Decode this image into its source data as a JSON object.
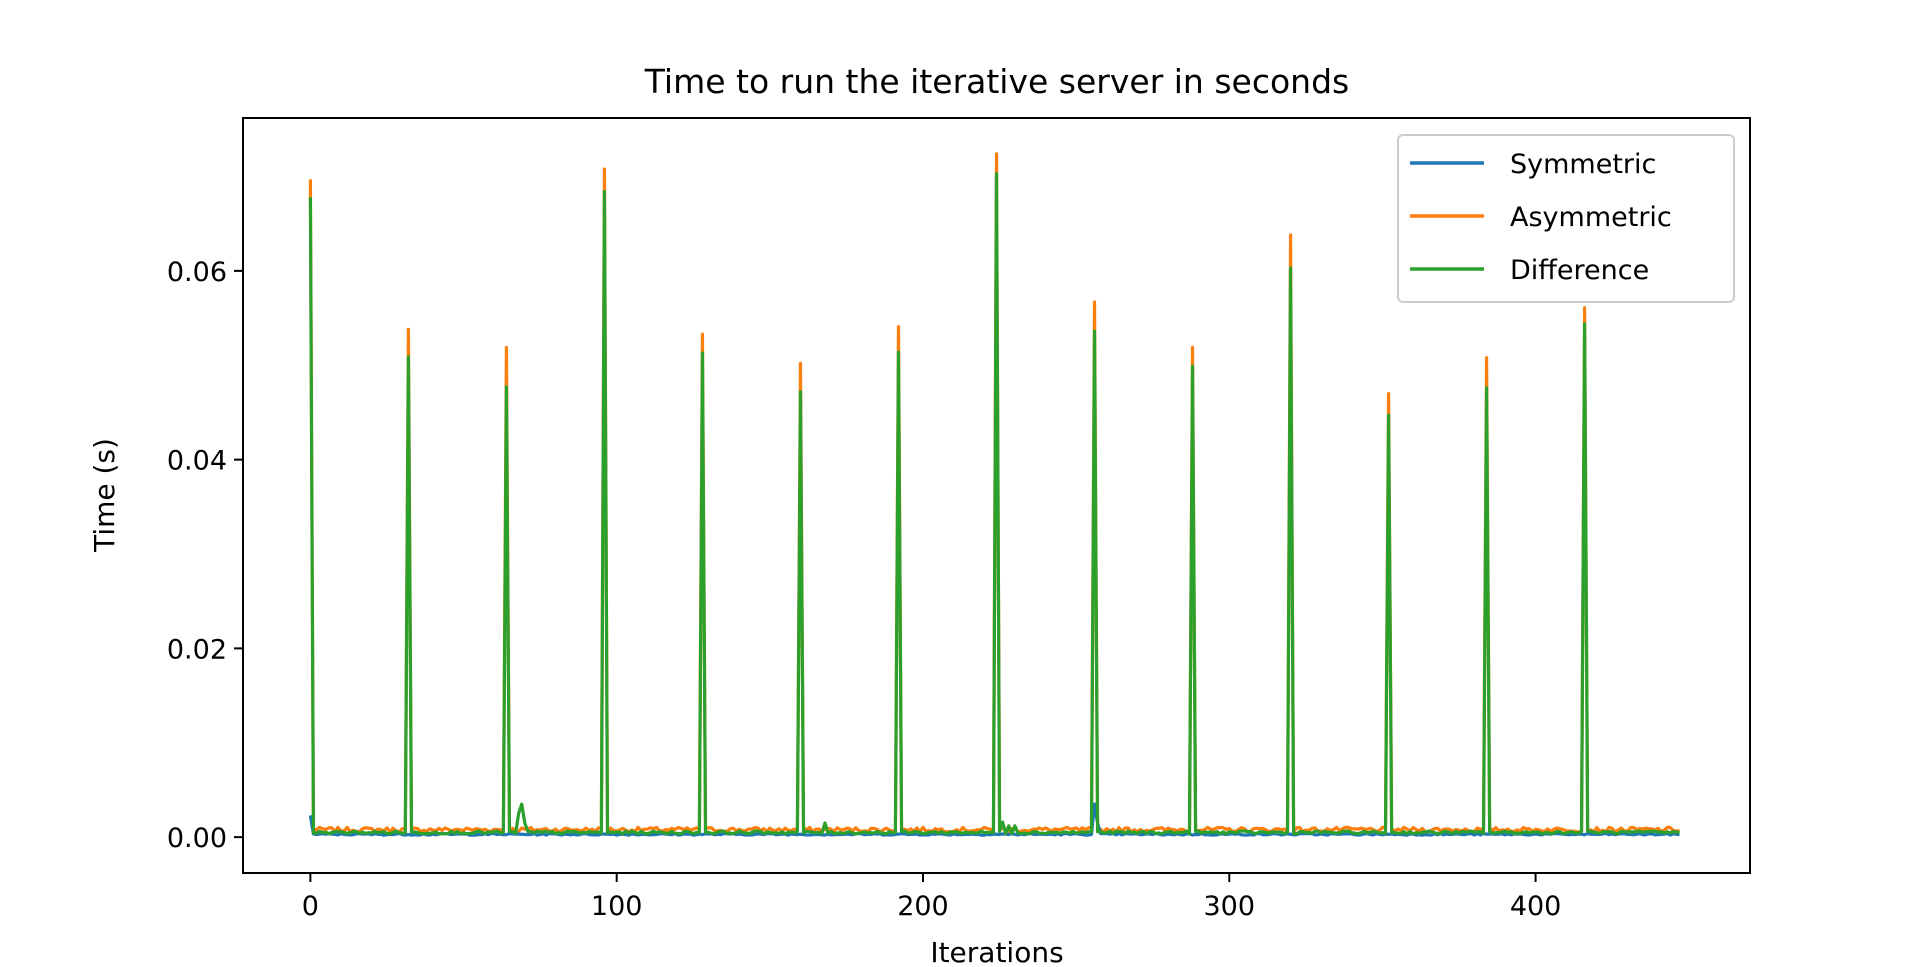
{
  "chart_data": {
    "type": "line",
    "title": "Time to run the iterative server in seconds",
    "xlabel": "Iterations",
    "ylabel": "Time (s)",
    "xlim": [
      -22,
      470
    ],
    "ylim": [
      -0.0038,
      0.0762
    ],
    "x_ticks": [
      0,
      100,
      200,
      300,
      400
    ],
    "x_tick_labels": [
      "0",
      "100",
      "200",
      "300",
      "400"
    ],
    "y_ticks": [
      0.0,
      0.02,
      0.04,
      0.06
    ],
    "y_tick_labels": [
      "0.00",
      "0.02",
      "0.04",
      "0.06"
    ],
    "grid": false,
    "legend_position": "top-right",
    "n_points": 448,
    "spike_period": 32,
    "series": [
      {
        "name": "Symmetric",
        "color": "#1f77b4",
        "baseline": 0.0003,
        "first_value": 0.0023,
        "spike_x": [
          256,
          257
        ],
        "spike_values": [
          0.0035,
          0.0015
        ]
      },
      {
        "name": "Asymmetric",
        "color": "#ff7f0e",
        "baseline": 0.0008,
        "spike_x": [
          0,
          32,
          64,
          96,
          128,
          160,
          192,
          224,
          256,
          288,
          320,
          352,
          384,
          416
        ],
        "spike_values": [
          0.0697,
          0.0538,
          0.0519,
          0.0708,
          0.0533,
          0.0502,
          0.0541,
          0.0724,
          0.0567,
          0.0519,
          0.0638,
          0.047,
          0.0508,
          0.0561
        ]
      },
      {
        "name": "Difference",
        "color": "#2ca02c",
        "baseline": 0.0005,
        "spike_x": [
          0,
          32,
          64,
          96,
          128,
          160,
          192,
          224,
          256,
          288,
          320,
          352,
          384,
          416
        ],
        "spike_values": [
          0.0678,
          0.0509,
          0.0477,
          0.0684,
          0.0513,
          0.0472,
          0.0514,
          0.0703,
          0.0536,
          0.0499,
          0.0603,
          0.0447,
          0.0476,
          0.0544
        ],
        "bumps_x": [
          68,
          69,
          70,
          168,
          226,
          228,
          230
        ],
        "bumps_values": [
          0.0025,
          0.0035,
          0.0015,
          0.0015,
          0.0016,
          0.0012,
          0.0012
        ]
      }
    ]
  }
}
